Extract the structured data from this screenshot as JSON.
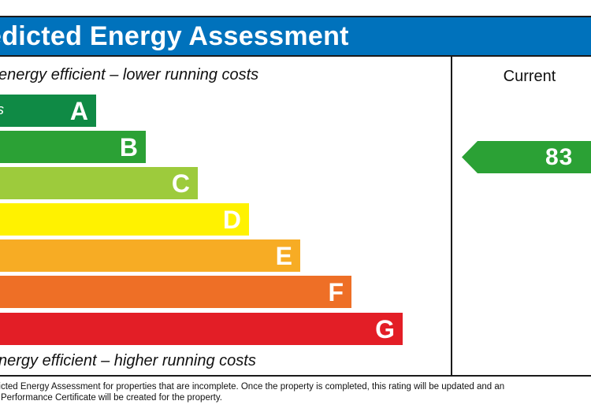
{
  "title": "edicted Energy Assessment",
  "top_caption": "energy efficient – lower running costs",
  "bottom_caption": "nergy efficient – higher running costs",
  "current_heading": "Current",
  "footnote": [
    "dicted Energy Assessment for properties that are incomplete. Once the property is completed, this rating will be updated and an",
    "y Performance Certificate will be created for the property."
  ],
  "chart_data": {
    "type": "bar",
    "title": "edicted Energy Assessment",
    "categories": [
      "A",
      "B",
      "C",
      "D",
      "E",
      "F",
      "G"
    ],
    "band_ranges": [
      "us",
      "",
      "",
      "",
      "",
      "",
      ""
    ],
    "band_colors": [
      "#008054",
      "#19b459",
      "#8dce46",
      "#ffd500",
      "#fcaa65",
      "#ef8023",
      "#e9153b"
    ],
    "colors": {
      "A": "#0f8a45",
      "B": "#2ba135",
      "C": "#9dcb3c",
      "D": "#fff200",
      "E": "#f7ac24",
      "F": "#ee6f26",
      "G": "#e31e26"
    },
    "current": {
      "label": "Current",
      "value": 83,
      "band": "B",
      "color": "#2ba135"
    }
  }
}
